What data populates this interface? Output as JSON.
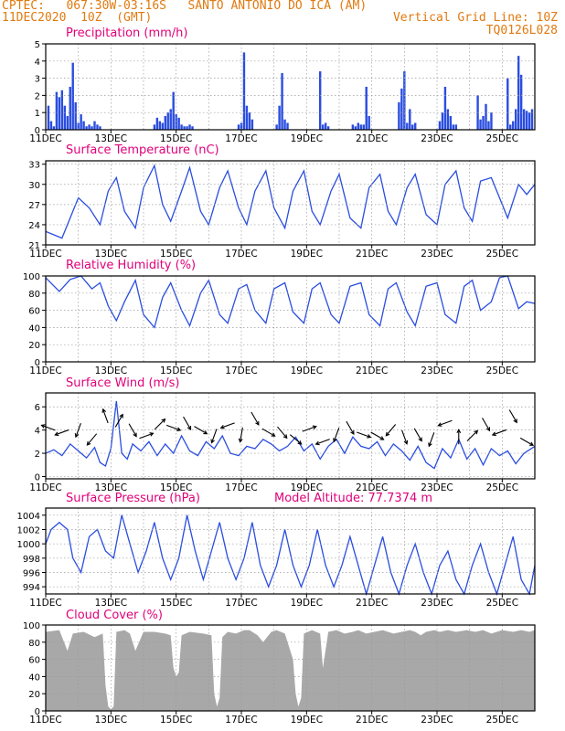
{
  "header": {
    "line1_left": "CPTEC:   067:30W-03:16S   SANTO ANTONIO DO ICA (AM)",
    "line2_left": "11DEC2020  10Z  (GMT)",
    "line2_right": "Vertical Grid Line: 10Z",
    "line3_right": "TQ0126L028",
    "model_altitude_label": "Model Altitude: 77.7374 m"
  },
  "colors": {
    "header": "#e07a10",
    "title": "#e0007a",
    "series": "#2a4de0",
    "cloud": "#a8a8a8",
    "grid": "#9a9a9a"
  },
  "chart_data": [
    {
      "type": "bar",
      "title": "Precipitation (mm/h)",
      "x_ticks": [
        "11DEC",
        "13DEC",
        "15DEC",
        "17DEC",
        "19DEC",
        "21DEC",
        "23DEC",
        "25DEC"
      ],
      "ylim": [
        0,
        5
      ],
      "y_ticks": [
        0,
        1,
        2,
        3,
        4,
        5
      ],
      "x_unit": "hours from 11DEC 10Z, 0..360",
      "hours": [
        2,
        4,
        6,
        8,
        10,
        12,
        14,
        16,
        18,
        20,
        22,
        24,
        26,
        28,
        30,
        32,
        34,
        36,
        38,
        40,
        80,
        82,
        84,
        86,
        88,
        90,
        92,
        94,
        96,
        98,
        100,
        102,
        104,
        106,
        108,
        142,
        144,
        146,
        148,
        150,
        152,
        170,
        172,
        174,
        176,
        178,
        202,
        204,
        206,
        208,
        226,
        228,
        230,
        232,
        234,
        236,
        238,
        260,
        262,
        264,
        266,
        268,
        270,
        272,
        290,
        292,
        294,
        296,
        298,
        300,
        302,
        318,
        320,
        322,
        324,
        326,
        328,
        340,
        342,
        344,
        346,
        348,
        350,
        352,
        354,
        356,
        358
      ],
      "values": [
        1.4,
        0.5,
        0.2,
        2.2,
        1.9,
        2.3,
        1.4,
        0.8,
        2.5,
        3.9,
        1.6,
        0.4,
        0.9,
        0.5,
        0.2,
        0.3,
        0.2,
        0.5,
        0.3,
        0.2,
        0.3,
        0.7,
        0.5,
        0.4,
        0.8,
        1.0,
        1.2,
        2.2,
        0.9,
        0.7,
        0.3,
        0.2,
        0.2,
        0.3,
        0.2,
        0.3,
        0.4,
        4.5,
        1.4,
        1.0,
        0.6,
        0.3,
        1.4,
        3.3,
        0.6,
        0.4,
        3.4,
        0.3,
        0.4,
        0.2,
        0.3,
        0.2,
        0.4,
        0.3,
        0.3,
        2.5,
        0.8,
        1.6,
        2.4,
        3.4,
        0.4,
        1.2,
        0.3,
        0.4,
        0.5,
        1.0,
        2.5,
        1.2,
        0.8,
        0.3,
        0.3,
        2.0,
        0.6,
        0.8,
        1.5,
        0.5,
        1.0,
        3.0,
        0.3,
        0.5,
        1.2,
        4.3,
        3.2,
        1.2,
        1.1,
        1.0,
        1.2
      ]
    },
    {
      "type": "line",
      "title": "Surface Temperature (nC)",
      "x_ticks": [
        "11DEC",
        "13DEC",
        "15DEC",
        "17DEC",
        "19DEC",
        "21DEC",
        "23DEC",
        "25DEC"
      ],
      "ylim": [
        21,
        33.5
      ],
      "y_ticks": [
        21,
        24,
        27,
        30,
        33
      ],
      "x": [
        0,
        12,
        24,
        32,
        40,
        46,
        52,
        58,
        66,
        72,
        80,
        86,
        92,
        100,
        106,
        114,
        120,
        128,
        134,
        142,
        148,
        154,
        162,
        168,
        176,
        182,
        190,
        196,
        202,
        210,
        216,
        224,
        232,
        238,
        246,
        252,
        258,
        266,
        272,
        280,
        288,
        294,
        302,
        308,
        314,
        320,
        328,
        334,
        340,
        348,
        354,
        360
      ],
      "values": [
        23.0,
        22.0,
        28.0,
        26.5,
        24.0,
        29.0,
        31.0,
        26.0,
        23.5,
        29.5,
        32.8,
        27.0,
        24.5,
        29.0,
        32.5,
        26.0,
        24.0,
        29.5,
        32.0,
        26.5,
        24.0,
        29.0,
        32.0,
        26.5,
        23.5,
        29.0,
        32.0,
        26.0,
        24.0,
        29.0,
        31.5,
        25.0,
        23.5,
        29.5,
        31.5,
        26.0,
        24.0,
        29.5,
        31.5,
        25.5,
        24.0,
        30.0,
        32.0,
        26.5,
        24.5,
        30.5,
        31.0,
        28.0,
        25.0,
        30.0,
        28.5,
        30.0
      ]
    },
    {
      "type": "line",
      "title": "Relative Humidity (%)",
      "x_ticks": [
        "11DEC",
        "13DEC",
        "15DEC",
        "17DEC",
        "19DEC",
        "21DEC",
        "23DEC",
        "25DEC"
      ],
      "ylim": [
        0,
        100
      ],
      "y_ticks": [
        0,
        20,
        40,
        60,
        80,
        100
      ],
      "x": [
        0,
        10,
        18,
        26,
        34,
        40,
        46,
        52,
        58,
        66,
        72,
        80,
        86,
        92,
        100,
        106,
        114,
        120,
        128,
        134,
        142,
        148,
        154,
        162,
        168,
        176,
        182,
        190,
        196,
        202,
        210,
        216,
        224,
        232,
        238,
        246,
        252,
        258,
        266,
        272,
        280,
        288,
        294,
        302,
        308,
        314,
        320,
        328,
        334,
        340,
        348,
        354,
        360
      ],
      "values": [
        98,
        82,
        96,
        100,
        85,
        92,
        65,
        48,
        70,
        95,
        55,
        40,
        75,
        92,
        60,
        42,
        80,
        95,
        55,
        45,
        85,
        90,
        60,
        45,
        85,
        92,
        58,
        45,
        85,
        92,
        55,
        45,
        88,
        92,
        55,
        42,
        85,
        92,
        58,
        42,
        88,
        92,
        55,
        45,
        88,
        95,
        60,
        70,
        98,
        100,
        62,
        70,
        68
      ]
    },
    {
      "type": "line",
      "title": "Surface Wind (m/s)",
      "x_ticks": [
        "11DEC",
        "13DEC",
        "15DEC",
        "17DEC",
        "19DEC",
        "21DEC",
        "23DEC",
        "25DEC"
      ],
      "ylim": [
        -0.2,
        7.2
      ],
      "y_ticks": [
        0,
        2,
        4,
        6
      ],
      "x": [
        0,
        6,
        12,
        18,
        24,
        30,
        36,
        40,
        44,
        48,
        52,
        56,
        60,
        64,
        70,
        76,
        82,
        88,
        94,
        100,
        106,
        112,
        118,
        124,
        130,
        136,
        142,
        148,
        154,
        160,
        166,
        172,
        178,
        184,
        190,
        196,
        202,
        208,
        214,
        220,
        226,
        232,
        238,
        244,
        250,
        256,
        262,
        268,
        274,
        280,
        286,
        292,
        298,
        304,
        310,
        316,
        322,
        328,
        334,
        340,
        346,
        352,
        360
      ],
      "values": [
        2.0,
        2.3,
        1.8,
        2.8,
        2.2,
        1.6,
        2.5,
        1.2,
        0.9,
        2.4,
        6.5,
        2.0,
        1.5,
        2.8,
        2.2,
        3.0,
        1.8,
        2.8,
        2.0,
        3.5,
        2.2,
        1.8,
        3.0,
        2.4,
        3.5,
        2.0,
        1.8,
        2.6,
        2.4,
        3.2,
        2.8,
        2.2,
        2.6,
        3.4,
        2.2,
        2.8,
        1.5,
        2.6,
        3.2,
        2.0,
        3.4,
        2.6,
        2.4,
        3.0,
        1.8,
        2.8,
        2.2,
        1.4,
        2.6,
        1.2,
        0.7,
        2.4,
        1.6,
        3.2,
        1.5,
        2.4,
        1.0,
        2.4,
        1.8,
        2.2,
        1.1,
        2.0,
        2.6
      ]
    },
    {
      "type": "line",
      "title": "Surface Pressure (hPa)",
      "x_ticks": [
        "11DEC",
        "13DEC",
        "15DEC",
        "17DEC",
        "19DEC",
        "21DEC",
        "23DEC",
        "25DEC"
      ],
      "ylim": [
        993,
        1005
      ],
      "y_ticks": [
        994,
        996,
        998,
        1000,
        1002,
        1004
      ],
      "x": [
        0,
        4,
        10,
        16,
        20,
        26,
        32,
        38,
        44,
        50,
        56,
        62,
        68,
        74,
        80,
        86,
        92,
        98,
        104,
        110,
        116,
        122,
        128,
        134,
        140,
        146,
        152,
        158,
        164,
        170,
        176,
        182,
        188,
        194,
        200,
        206,
        212,
        218,
        224,
        230,
        236,
        242,
        248,
        254,
        260,
        266,
        272,
        278,
        284,
        290,
        296,
        302,
        308,
        314,
        320,
        326,
        332,
        338,
        344,
        350,
        356,
        360
      ],
      "values": [
        1000,
        1002,
        1003,
        1002,
        998,
        996,
        1001,
        1002,
        999,
        998,
        1004,
        1000,
        996,
        999,
        1003,
        998,
        995,
        998,
        1004,
        999,
        995,
        999,
        1003,
        998,
        995,
        998,
        1003,
        997,
        994,
        997,
        1002,
        997,
        994,
        997,
        1002,
        997,
        994,
        997,
        1001,
        997,
        993,
        997,
        1001,
        996,
        993,
        997,
        1000,
        996,
        993,
        997,
        999,
        995,
        993,
        997,
        1000,
        996,
        993,
        997,
        1001,
        995,
        993,
        997
      ]
    },
    {
      "type": "area",
      "title": "Cloud Cover (%)",
      "x_ticks": [
        "11DEC",
        "13DEC",
        "15DEC",
        "17DEC",
        "19DEC",
        "21DEC",
        "23DEC",
        "25DEC"
      ],
      "ylim": [
        0,
        100
      ],
      "y_ticks": [
        0,
        20,
        40,
        60,
        80,
        100
      ],
      "x": [
        0,
        10,
        16,
        20,
        28,
        36,
        42,
        44,
        46,
        48,
        50,
        52,
        58,
        62,
        66,
        72,
        80,
        88,
        92,
        94,
        96,
        98,
        100,
        106,
        116,
        122,
        124,
        126,
        128,
        130,
        134,
        140,
        146,
        150,
        156,
        160,
        166,
        170,
        176,
        182,
        184,
        186,
        188,
        190,
        196,
        202,
        204,
        208,
        214,
        220,
        226,
        230,
        236,
        242,
        248,
        256,
        262,
        268,
        272,
        276,
        280,
        286,
        290,
        296,
        302,
        310,
        316,
        322,
        328,
        336,
        344,
        350,
        356,
        360
      ],
      "values": [
        92,
        94,
        70,
        90,
        92,
        86,
        90,
        30,
        5,
        2,
        5,
        92,
        94,
        90,
        70,
        92,
        92,
        90,
        88,
        50,
        40,
        45,
        88,
        92,
        90,
        88,
        20,
        5,
        15,
        86,
        92,
        90,
        94,
        94,
        88,
        80,
        92,
        94,
        90,
        60,
        20,
        5,
        15,
        90,
        94,
        90,
        50,
        92,
        94,
        90,
        92,
        94,
        90,
        92,
        94,
        90,
        92,
        94,
        92,
        88,
        92,
        94,
        92,
        94,
        92,
        94,
        92,
        94,
        90,
        94,
        92,
        94,
        92,
        94
      ]
    },
    {
      "type": "vector",
      "title": "Surface Wind (m/s) direction arrows",
      "arrow_hours": [
        2,
        12,
        24,
        34,
        44,
        54,
        64,
        74,
        84,
        94,
        104,
        114,
        124,
        134,
        144,
        154,
        164,
        174,
        184,
        194,
        204,
        214,
        224,
        234,
        244,
        254,
        264,
        274,
        284,
        294,
        304,
        314,
        324,
        334,
        344,
        354
      ],
      "arrow_angles_deg": [
        160,
        200,
        250,
        230,
        110,
        60,
        300,
        20,
        45,
        340,
        300,
        330,
        250,
        200,
        260,
        300,
        330,
        310,
        320,
        20,
        200,
        250,
        300,
        340,
        330,
        230,
        290,
        300,
        250,
        200,
        90,
        45,
        300,
        200,
        300,
        330
      ],
      "arrow_y_values": [
        4.2,
        3.8,
        4.0,
        3.2,
        5.2,
        4.8,
        4.0,
        3.5,
        4.5,
        4.2,
        4.6,
        4.0,
        3.5,
        4.4,
        3.6,
        5.0,
        3.8,
        3.8,
        3.2,
        4.1,
        3.0,
        3.6,
        4.2,
        3.6,
        3.5,
        4.0,
        3.4,
        3.6,
        3.2,
        4.6,
        3.4,
        3.5,
        4.5,
        3.8,
        5.2,
        3.0
      ]
    }
  ]
}
